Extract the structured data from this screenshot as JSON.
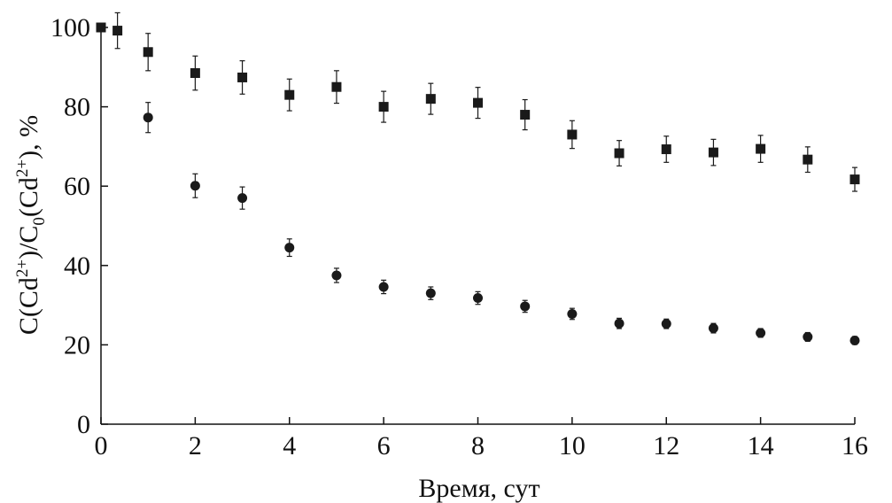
{
  "chart_data": {
    "type": "scatter",
    "title": "",
    "xlabel": "Время, сут",
    "ylabel": "C(Cd²⁺)/C₀(Cd²⁺), %",
    "ylabel_parts": {
      "a": "C(Cd",
      "sup1": "2+",
      "b": ")/C",
      "sub": "0",
      "c": "(Cd",
      "sup2": "2+",
      "d": "), %"
    },
    "xlim": [
      0,
      16
    ],
    "ylim": [
      0,
      100
    ],
    "xticks": [
      "0",
      "2",
      "4",
      "6",
      "8",
      "10",
      "12",
      "14",
      "16"
    ],
    "yticks": [
      "0",
      "20",
      "40",
      "60",
      "80",
      "100"
    ],
    "grid": false,
    "marker_color": "#1a1a1a",
    "series": [
      {
        "marker": "square",
        "points": [
          {
            "x": 0,
            "y": 100,
            "err": 0
          },
          {
            "x": 0.35,
            "y": 99.2,
            "err": 4.5
          },
          {
            "x": 1,
            "y": 93.8,
            "err": 4.7
          },
          {
            "x": 2,
            "y": 88.5,
            "err": 4.3
          },
          {
            "x": 3,
            "y": 87.4,
            "err": 4.2
          },
          {
            "x": 4,
            "y": 83.0,
            "err": 4.0
          },
          {
            "x": 5,
            "y": 85.0,
            "err": 4.1
          },
          {
            "x": 6,
            "y": 80.0,
            "err": 3.9
          },
          {
            "x": 7,
            "y": 82.0,
            "err": 3.9
          },
          {
            "x": 8,
            "y": 81.0,
            "err": 3.9
          },
          {
            "x": 9,
            "y": 78.0,
            "err": 3.8
          },
          {
            "x": 10,
            "y": 73.0,
            "err": 3.5
          },
          {
            "x": 11,
            "y": 68.3,
            "err": 3.2
          },
          {
            "x": 12,
            "y": 69.3,
            "err": 3.3
          },
          {
            "x": 13,
            "y": 68.5,
            "err": 3.3
          },
          {
            "x": 14,
            "y": 69.4,
            "err": 3.4
          },
          {
            "x": 15,
            "y": 66.7,
            "err": 3.2
          },
          {
            "x": 16,
            "y": 61.7,
            "err": 3.0
          }
        ]
      },
      {
        "marker": "circle",
        "points": [
          {
            "x": 0,
            "y": 100,
            "err": 0
          },
          {
            "x": 1,
            "y": 77.3,
            "err": 3.8
          },
          {
            "x": 2,
            "y": 60.1,
            "err": 3.0
          },
          {
            "x": 3,
            "y": 57.0,
            "err": 2.8
          },
          {
            "x": 4,
            "y": 44.5,
            "err": 2.2
          },
          {
            "x": 5,
            "y": 37.5,
            "err": 1.8
          },
          {
            "x": 6,
            "y": 34.6,
            "err": 1.7
          },
          {
            "x": 7,
            "y": 33.0,
            "err": 1.6
          },
          {
            "x": 8,
            "y": 31.8,
            "err": 1.6
          },
          {
            "x": 9,
            "y": 29.7,
            "err": 1.5
          },
          {
            "x": 10,
            "y": 27.8,
            "err": 1.4
          },
          {
            "x": 11,
            "y": 25.4,
            "err": 1.3
          },
          {
            "x": 12,
            "y": 25.3,
            "err": 1.2
          },
          {
            "x": 13,
            "y": 24.2,
            "err": 1.2
          },
          {
            "x": 14,
            "y": 23.0,
            "err": 1.1
          },
          {
            "x": 15,
            "y": 22.0,
            "err": 1.1
          },
          {
            "x": 16,
            "y": 21.1,
            "err": 1.0
          }
        ]
      }
    ]
  }
}
